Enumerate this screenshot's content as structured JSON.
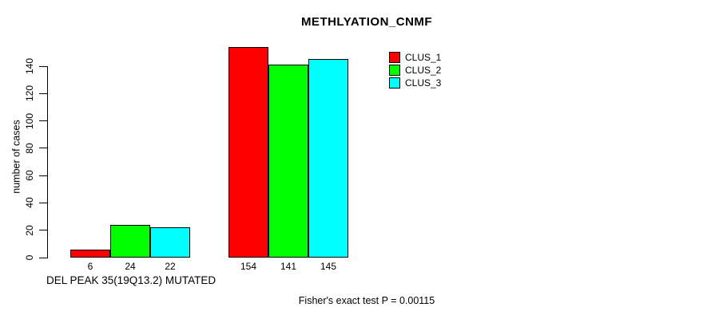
{
  "chart_data": {
    "type": "bar",
    "title": "METHLYATION_CNMF",
    "ylabel": "number of cases",
    "xlabel": "DEL PEAK 35(19Q13.2) MUTATED",
    "footer": "Fisher's exact test P = 0.00115",
    "groups": [
      "DEL PEAK 35(19Q13.2) MUTATED",
      ""
    ],
    "series": [
      {
        "name": "CLUS_1",
        "color": "#ff0000",
        "values": [
          6,
          154
        ]
      },
      {
        "name": "CLUS_2",
        "color": "#00ff00",
        "values": [
          24,
          141
        ]
      },
      {
        "name": "CLUS_3",
        "color": "#00ffff",
        "values": [
          22,
          145
        ]
      }
    ],
    "bar_labels": [
      [
        "6",
        "24",
        "22"
      ],
      [
        "154",
        "141",
        "145"
      ]
    ],
    "yticks": [
      0,
      20,
      40,
      60,
      80,
      100,
      120,
      140
    ],
    "ylim": [
      0,
      160
    ],
    "grid": false,
    "legend_position": "top-right",
    "background": "#ffffff",
    "bar_border_color": "#000000"
  }
}
